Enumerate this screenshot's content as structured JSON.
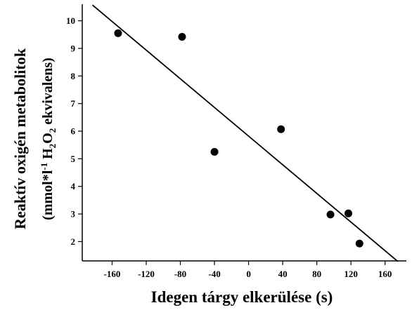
{
  "chart_data": {
    "type": "scatter",
    "title": "",
    "xlabel": "Idegen tárgy elkerülése (s)",
    "ylabel_line1": "Reaktív oxigén metabolitok",
    "ylabel_line2": {
      "pre": "(mmol*l",
      "sup": "-1",
      "mid": " H",
      "sub1": "2",
      "mid2": "O",
      "sub2": "2",
      "post": " ekvivalens)"
    },
    "xlim": [
      -195,
      185
    ],
    "ylim": [
      1.3,
      10.6
    ],
    "xticks": [
      "-160",
      "-120",
      "-80",
      "-40",
      "0",
      "40",
      "80",
      "120",
      "160"
    ],
    "yticks": [
      "2",
      "3",
      "4",
      "5",
      "6",
      "7",
      "8",
      "9",
      "10"
    ],
    "points": [
      {
        "x": -153,
        "y": 9.55
      },
      {
        "x": -78,
        "y": 9.42
      },
      {
        "x": -40,
        "y": 5.25
      },
      {
        "x": 38,
        "y": 6.07
      },
      {
        "x": 96,
        "y": 2.98
      },
      {
        "x": 117,
        "y": 3.02
      },
      {
        "x": 130,
        "y": 1.93
      }
    ],
    "trendline": {
      "x": [
        -183,
        175
      ],
      "y": [
        10.57,
        1.28
      ]
    },
    "grid": false,
    "marker_color": "#000000",
    "line_color": "#000000"
  }
}
